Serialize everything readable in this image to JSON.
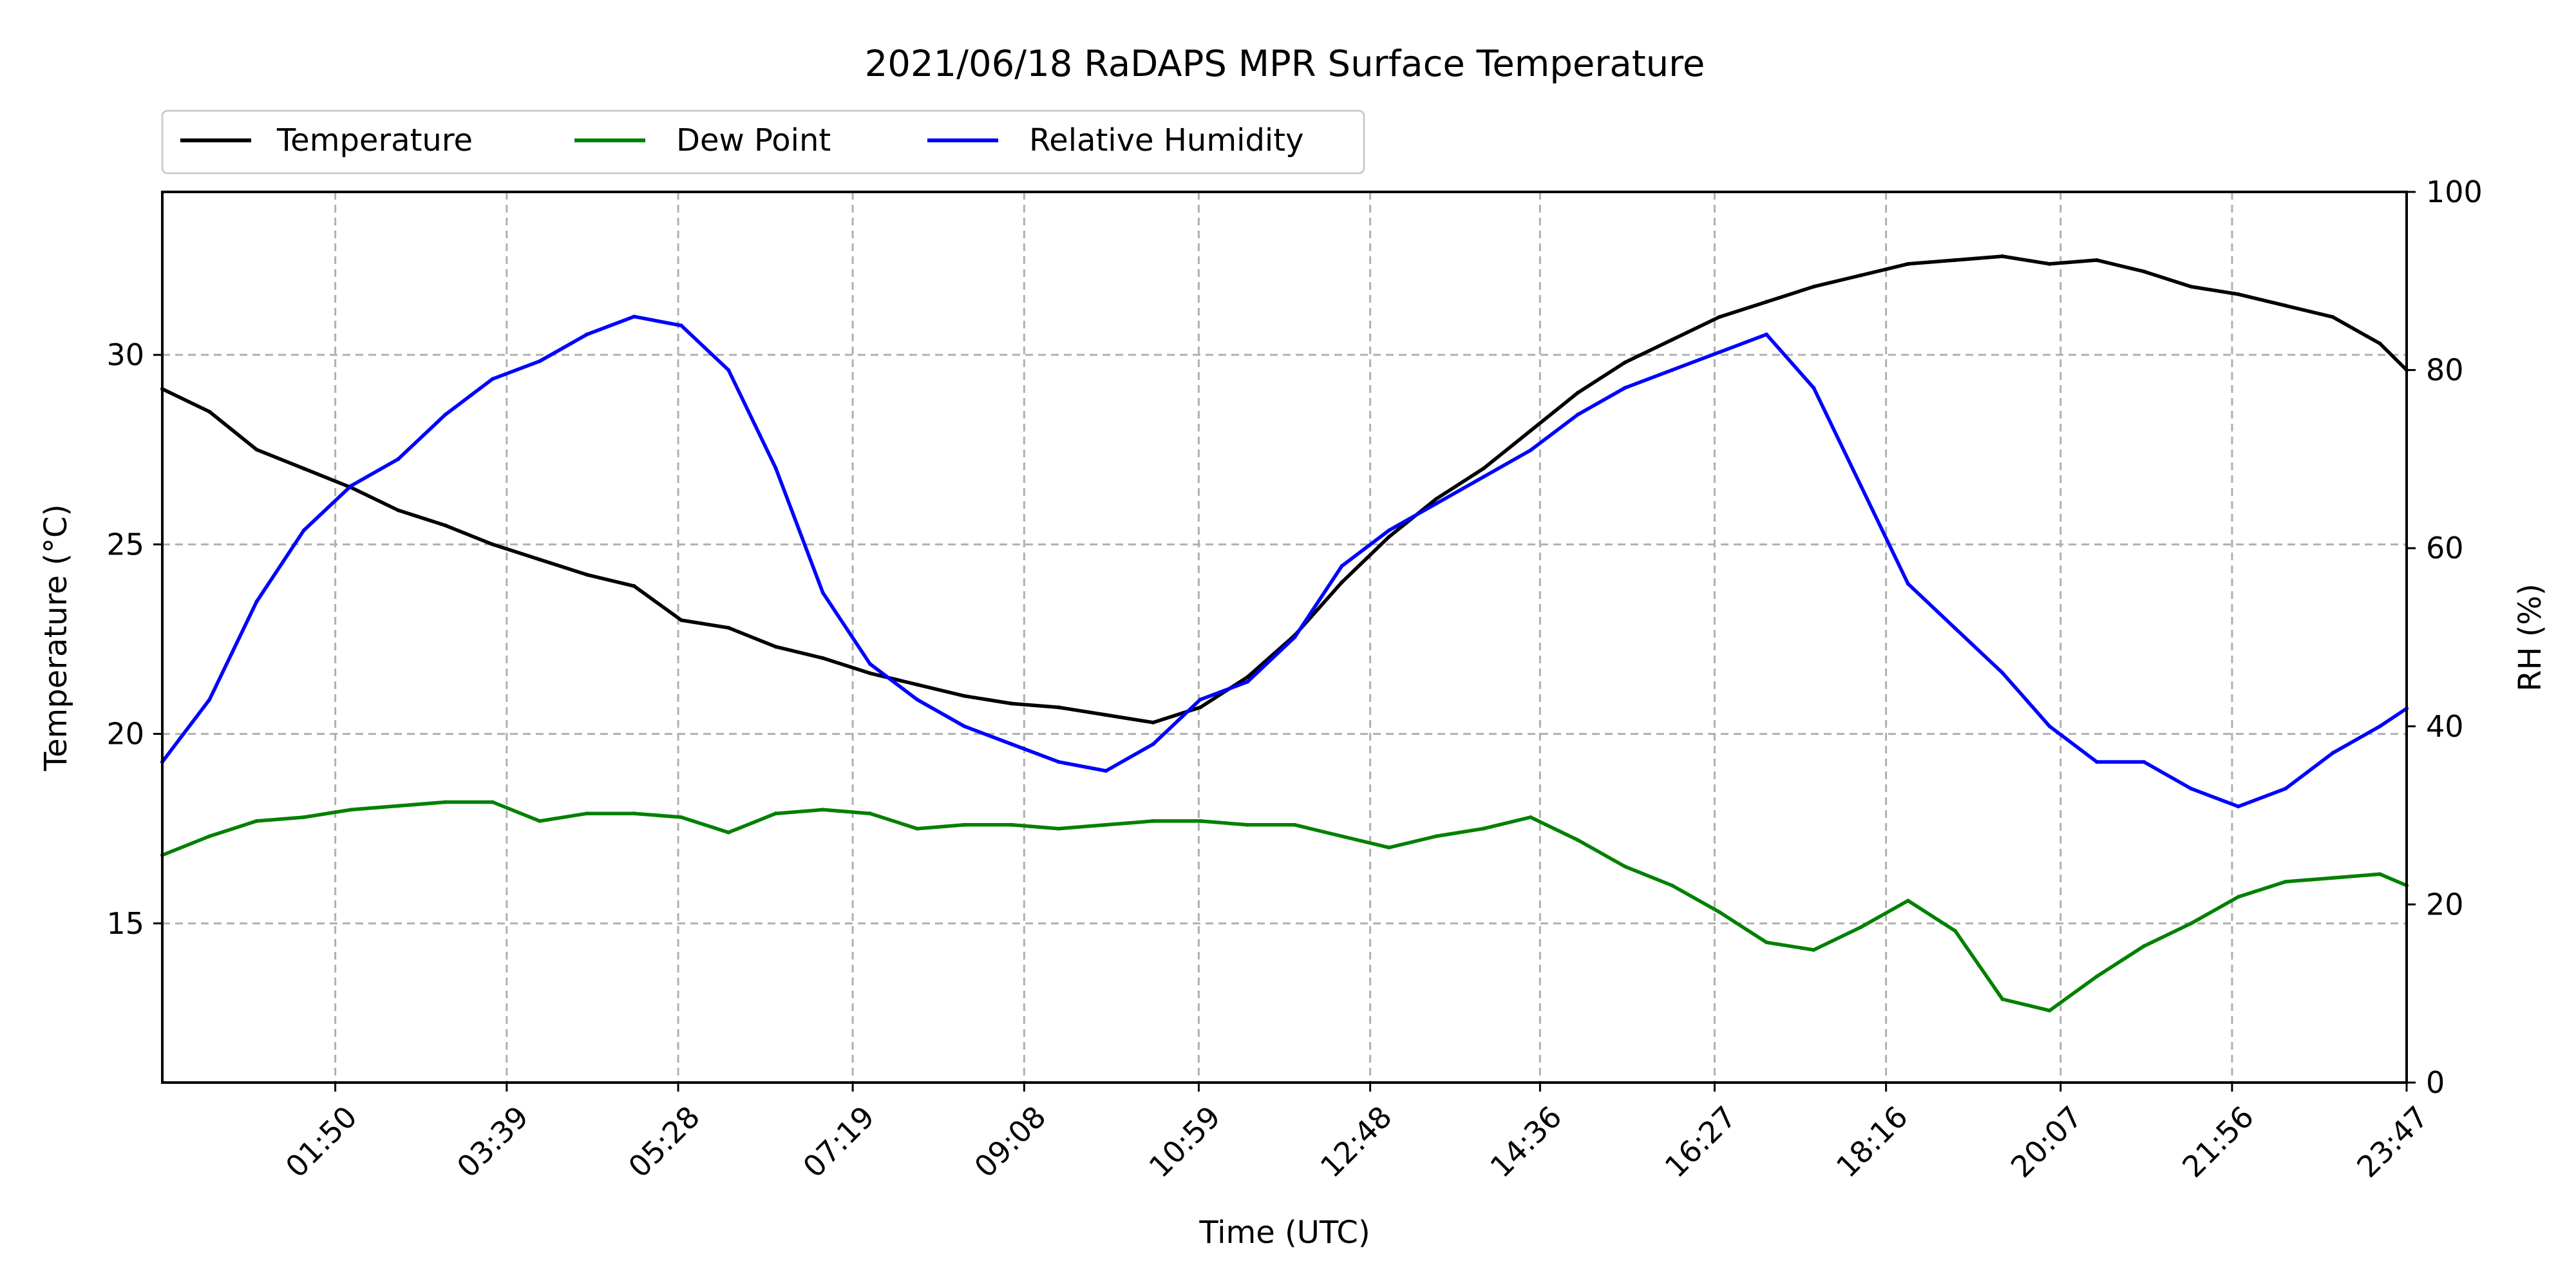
{
  "chart_data": {
    "type": "line",
    "title": "2021/06/18 RaDAPS MPR Surface Temperature",
    "xlabel": "Time (UTC)",
    "ylabel_left": "Temperature (°C)",
    "ylabel_right": "RH (%)",
    "xlim": [
      "00:00",
      "23:47"
    ],
    "xticks": [
      "01:50",
      "03:39",
      "05:28",
      "07:19",
      "09:08",
      "10:59",
      "12:48",
      "14:36",
      "16:27",
      "18:16",
      "20:07",
      "21:56",
      "23:47"
    ],
    "ylim_left": [
      10.8,
      34.3
    ],
    "ylim_right": [
      0,
      100
    ],
    "yticks_left": [
      15,
      20,
      25,
      30
    ],
    "yticks_right": [
      0,
      20,
      40,
      60,
      80,
      100
    ],
    "grid": true,
    "legend_position": "top-left, above plot",
    "series": [
      {
        "name": "Temperature",
        "axis": "left",
        "color": "#000000",
        "x": [
          "00:00",
          "00:30",
          "01:00",
          "01:30",
          "02:00",
          "02:30",
          "03:00",
          "03:30",
          "04:00",
          "04:30",
          "05:00",
          "05:30",
          "06:00",
          "06:30",
          "07:00",
          "07:30",
          "08:00",
          "08:30",
          "09:00",
          "09:30",
          "10:00",
          "10:30",
          "11:00",
          "11:30",
          "12:00",
          "12:30",
          "13:00",
          "13:30",
          "14:00",
          "14:30",
          "15:00",
          "15:30",
          "16:00",
          "16:30",
          "17:00",
          "17:30",
          "18:00",
          "18:30",
          "19:00",
          "19:30",
          "20:00",
          "20:30",
          "21:00",
          "21:30",
          "22:00",
          "22:30",
          "23:00",
          "23:30",
          "23:47"
        ],
        "values": [
          29.1,
          28.5,
          27.5,
          27.0,
          26.5,
          25.9,
          25.5,
          25.0,
          24.6,
          24.2,
          23.9,
          23.0,
          22.8,
          22.3,
          22.0,
          21.6,
          21.3,
          21.0,
          20.8,
          20.7,
          20.5,
          20.3,
          20.7,
          21.5,
          22.6,
          24.0,
          25.2,
          26.2,
          27.0,
          28.0,
          29.0,
          29.8,
          30.4,
          31.0,
          31.4,
          31.8,
          32.1,
          32.4,
          32.5,
          32.6,
          32.4,
          32.5,
          32.2,
          31.8,
          31.6,
          31.3,
          31.0,
          30.3,
          29.6
        ]
      },
      {
        "name": "Dew Point",
        "axis": "left",
        "color": "#008000",
        "x": [
          "00:00",
          "00:30",
          "01:00",
          "01:30",
          "02:00",
          "02:30",
          "03:00",
          "03:30",
          "04:00",
          "04:30",
          "05:00",
          "05:30",
          "06:00",
          "06:30",
          "07:00",
          "07:30",
          "08:00",
          "08:30",
          "09:00",
          "09:30",
          "10:00",
          "10:30",
          "11:00",
          "11:30",
          "12:00",
          "12:30",
          "13:00",
          "13:30",
          "14:00",
          "14:30",
          "15:00",
          "15:30",
          "16:00",
          "16:30",
          "17:00",
          "17:30",
          "18:00",
          "18:30",
          "19:00",
          "19:30",
          "20:00",
          "20:30",
          "21:00",
          "21:30",
          "22:00",
          "22:30",
          "23:00",
          "23:30",
          "23:47"
        ],
        "values": [
          16.8,
          17.3,
          17.7,
          17.8,
          18.0,
          18.1,
          18.2,
          18.2,
          17.7,
          17.9,
          17.9,
          17.8,
          17.4,
          17.9,
          18.0,
          17.9,
          17.5,
          17.6,
          17.6,
          17.5,
          17.6,
          17.7,
          17.7,
          17.6,
          17.6,
          17.3,
          17.0,
          17.3,
          17.5,
          17.8,
          17.2,
          16.5,
          16.0,
          15.3,
          14.5,
          14.3,
          14.9,
          15.6,
          14.8,
          13.0,
          12.7,
          13.6,
          14.4,
          15.0,
          15.7,
          16.1,
          16.2,
          16.3,
          16.0
        ]
      },
      {
        "name": "Relative Humidity",
        "axis": "right",
        "color": "#0000ff",
        "x": [
          "00:00",
          "00:30",
          "01:00",
          "01:30",
          "02:00",
          "02:30",
          "03:00",
          "03:30",
          "04:00",
          "04:30",
          "05:00",
          "05:30",
          "06:00",
          "06:30",
          "07:00",
          "07:30",
          "08:00",
          "08:30",
          "09:00",
          "09:30",
          "10:00",
          "10:30",
          "11:00",
          "11:30",
          "12:00",
          "12:30",
          "13:00",
          "13:30",
          "14:00",
          "14:30",
          "15:00",
          "15:30",
          "16:00",
          "16:30",
          "17:00",
          "17:30",
          "18:00",
          "18:30",
          "19:00",
          "19:30",
          "20:00",
          "20:30",
          "21:00",
          "21:30",
          "22:00",
          "22:30",
          "23:00",
          "23:30",
          "23:47"
        ],
        "values": [
          36,
          43,
          54,
          62,
          67,
          70,
          75,
          79,
          81,
          84,
          86,
          85,
          80,
          69,
          55,
          47,
          43,
          40,
          38,
          36,
          35,
          38,
          43,
          45,
          50,
          58,
          62,
          65,
          68,
          71,
          75,
          78,
          80,
          82,
          84,
          78,
          67,
          56,
          51,
          46,
          40,
          36,
          36,
          33,
          31,
          33,
          37,
          40,
          42
        ]
      }
    ]
  }
}
